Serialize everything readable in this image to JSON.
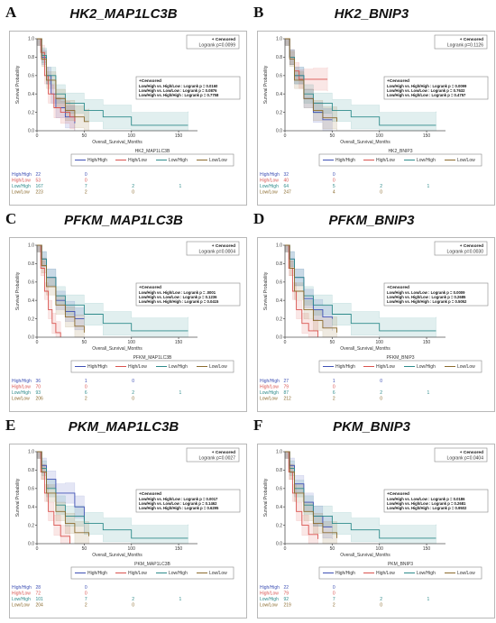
{
  "panels": [
    {
      "letter": "A",
      "title": "HK2_MAP1LC3B",
      "legend_title": "HK2_MAP1LC3B",
      "logrank_main": "Logrank p=0.0099",
      "censored_label": "+ Censored",
      "stats_title": "+Censored",
      "stats": [
        "Low/High vs. High/Low : Logrank p = 0.0160",
        "Low/High vs. Low/Low : Logrank p = 0.0876",
        "Low/High vs. High/High : Logrank p = 0.7758"
      ],
      "risk_table": [
        {
          "group": "High/High",
          "counts": [
            "22",
            "0",
            "",
            ""
          ]
        },
        {
          "group": "High/Low",
          "counts": [
            "53",
            "0",
            "",
            ""
          ]
        },
        {
          "group": "Low/High",
          "counts": [
            "167",
            "7",
            "2",
            "1"
          ]
        },
        {
          "group": "Low/Low",
          "counts": [
            "223",
            "2",
            "0",
            ""
          ]
        }
      ]
    },
    {
      "letter": "B",
      "title": "HK2_BNIP3",
      "legend_title": "HK2_BNIP3",
      "logrank_main": "Logrank p=0.1126",
      "censored_label": "+ Censored",
      "stats_title": "+Censored",
      "stats": [
        "Low/High vs. High/High : Logrank p = 0.0099",
        "Low/High vs. Low/Low : Logrank p = 0.7632",
        "Low/High vs. High/Low : Logrank p = 0.4757"
      ],
      "risk_table": [
        {
          "group": "High/High",
          "counts": [
            "32",
            "0",
            "",
            ""
          ]
        },
        {
          "group": "High/Low",
          "counts": [
            "40",
            "0",
            "",
            ""
          ]
        },
        {
          "group": "Low/High",
          "counts": [
            "64",
            "5",
            "2",
            "1"
          ]
        },
        {
          "group": "Low/Low",
          "counts": [
            "247",
            "4",
            "0",
            ""
          ]
        }
      ]
    },
    {
      "letter": "C",
      "title": "PFKM_MAP1LC3B",
      "legend_title": "PFKM_MAP1LC3B",
      "logrank_main": "Logrank p=0.0004",
      "censored_label": "+ Censored",
      "stats_title": "+Censored",
      "stats": [
        "Low/High vs. High/Low : Logrank p = .0001",
        "Low/High vs. Low/Low : Logrank p = 0.1236",
        "Low/High vs. High/High : Logrank p = 0.0415"
      ],
      "risk_table": [
        {
          "group": "High/High",
          "counts": [
            "36",
            "1",
            "0",
            ""
          ]
        },
        {
          "group": "High/Low",
          "counts": [
            "70",
            "0",
            "",
            ""
          ]
        },
        {
          "group": "Low/High",
          "counts": [
            "93",
            "6",
            "2",
            "1"
          ]
        },
        {
          "group": "Low/Low",
          "counts": [
            "206",
            "2",
            "0",
            ""
          ]
        }
      ]
    },
    {
      "letter": "D",
      "title": "PFKM_BNIP3",
      "legend_title": "PFKM_BNIP3",
      "logrank_main": "Logrank p=0.0030",
      "censored_label": "+ Censored",
      "stats_title": "+Censored",
      "stats": [
        "Low/High vs. Low/Low : Logrank p = 0.0009",
        "Low/High vs. High/Low : Logrank p = 0.2685",
        "Low/High vs. High/High : Logrank p = 0.5052"
      ],
      "risk_table": [
        {
          "group": "High/High",
          "counts": [
            "27",
            "1",
            "0",
            ""
          ]
        },
        {
          "group": "High/Low",
          "counts": [
            "79",
            "0",
            "",
            ""
          ]
        },
        {
          "group": "Low/High",
          "counts": [
            "87",
            "6",
            "2",
            "1"
          ]
        },
        {
          "group": "Low/Low",
          "counts": [
            "212",
            "2",
            "0",
            ""
          ]
        }
      ]
    },
    {
      "letter": "E",
      "title": "PKM_MAP1LC3B",
      "legend_title": "PKM_MAP1LC3B",
      "logrank_main": "Logrank p=0.0027",
      "censored_label": "+ Censored",
      "stats_title": "+Censored",
      "stats": [
        "Low/High vs. High/Low : Logrank p = 0.0017",
        "Low/High vs. Low/Low : Logrank p = 0.1462",
        "Low/High vs. High/High : Logrank p = 0.6295"
      ],
      "risk_table": [
        {
          "group": "High/High",
          "counts": [
            "28",
            "0",
            "",
            ""
          ]
        },
        {
          "group": "High/Low",
          "counts": [
            "72",
            "0",
            "",
            ""
          ]
        },
        {
          "group": "Low/High",
          "counts": [
            "101",
            "7",
            "2",
            "1"
          ]
        },
        {
          "group": "Low/Low",
          "counts": [
            "204",
            "2",
            "0",
            ""
          ]
        }
      ]
    },
    {
      "letter": "F",
      "title": "PKM_BNIP3",
      "legend_title": "PKM_BNIP3",
      "logrank_main": "Logrank p=0.0404",
      "censored_label": "+ Censored",
      "stats_title": "+Censored",
      "stats": [
        "Low/High vs. Low/Low : Logrank p = 0.0186",
        "Low/High vs. High/Low : Logrank p = 0.2681",
        "Low/High vs. High/High : Logrank p = 0.9502"
      ],
      "risk_table": [
        {
          "group": "High/High",
          "counts": [
            "22",
            "0",
            "",
            ""
          ]
        },
        {
          "group": "High/Low",
          "counts": [
            "79",
            "0",
            "",
            ""
          ]
        },
        {
          "group": "Low/High",
          "counts": [
            "92",
            "7",
            "2",
            "1"
          ]
        },
        {
          "group": "Low/Low",
          "counts": [
            "219",
            "2",
            "0",
            ""
          ]
        }
      ]
    }
  ],
  "chart_data": {
    "type": "line",
    "xlabel": "Overall_Survival_Months",
    "ylabel": "Survival Probability",
    "xlim": [
      0,
      170
    ],
    "ylim": [
      0,
      1.0
    ],
    "x_ticks": [
      0,
      50,
      100,
      150
    ],
    "y_ticks": [
      0.0,
      0.2,
      0.4,
      0.6,
      0.8,
      1.0
    ],
    "series_names": [
      "High/High",
      "High/Low",
      "Low/High",
      "Low/Low"
    ],
    "series_colors": {
      "High/High": "#3f51b5",
      "High/Low": "#d9534f",
      "Low/High": "#2e8b8b",
      "Low/Low": "#8b6b2e"
    },
    "panels": [
      {
        "series": [
          {
            "name": "High/High",
            "x": [
              0,
              5,
              10,
              15,
              20,
              30,
              40
            ],
            "y": [
              1.0,
              0.8,
              0.6,
              0.4,
              0.25,
              0.15,
              0.08
            ]
          },
          {
            "name": "High/Low",
            "x": [
              0,
              4,
              8,
              12,
              18,
              25,
              35,
              40
            ],
            "y": [
              1.0,
              0.85,
              0.6,
              0.4,
              0.25,
              0.2,
              0.15,
              0.1
            ]
          },
          {
            "name": "Low/High",
            "x": [
              0,
              5,
              10,
              20,
              30,
              50,
              70,
              100,
              160
            ],
            "y": [
              1.0,
              0.82,
              0.6,
              0.4,
              0.3,
              0.22,
              0.15,
              0.06,
              0.06
            ]
          },
          {
            "name": "Low/Low",
            "x": [
              0,
              5,
              10,
              20,
              30,
              40,
              50,
              55
            ],
            "y": [
              1.0,
              0.78,
              0.55,
              0.35,
              0.22,
              0.15,
              0.1,
              0.1
            ]
          }
        ]
      },
      {
        "series": [
          {
            "name": "High/High",
            "x": [
              0,
              5,
              10,
              20,
              30,
              40,
              50
            ],
            "y": [
              1.0,
              0.8,
              0.6,
              0.35,
              0.2,
              0.12,
              0.12
            ]
          },
          {
            "name": "High/Low",
            "x": [
              0,
              5,
              10,
              15,
              20,
              30,
              45
            ],
            "y": [
              1.0,
              0.8,
              0.65,
              0.56,
              0.56,
              0.56,
              0.56
            ]
          },
          {
            "name": "Low/High",
            "x": [
              0,
              5,
              10,
              20,
              30,
              50,
              70,
              100,
              160
            ],
            "y": [
              1.0,
              0.8,
              0.6,
              0.4,
              0.3,
              0.22,
              0.15,
              0.06,
              0.06
            ]
          },
          {
            "name": "Low/Low",
            "x": [
              0,
              5,
              10,
              20,
              30,
              40,
              55
            ],
            "y": [
              1.0,
              0.78,
              0.55,
              0.35,
              0.22,
              0.14,
              0.1
            ]
          }
        ]
      },
      {
        "series": [
          {
            "name": "High/High",
            "x": [
              0,
              5,
              10,
              20,
              30,
              40,
              50
            ],
            "y": [
              1.0,
              0.85,
              0.65,
              0.4,
              0.28,
              0.2,
              0.2
            ]
          },
          {
            "name": "High/Low",
            "x": [
              0,
              4,
              8,
              12,
              16,
              20,
              25
            ],
            "y": [
              1.0,
              0.75,
              0.5,
              0.3,
              0.15,
              0.05,
              0.0
            ]
          },
          {
            "name": "Low/High",
            "x": [
              0,
              5,
              10,
              20,
              30,
              50,
              70,
              100,
              160
            ],
            "y": [
              1.0,
              0.85,
              0.65,
              0.45,
              0.35,
              0.25,
              0.15,
              0.07,
              0.07
            ]
          },
          {
            "name": "Low/Low",
            "x": [
              0,
              5,
              10,
              20,
              30,
              40,
              50
            ],
            "y": [
              1.0,
              0.78,
              0.55,
              0.35,
              0.22,
              0.12,
              0.05
            ]
          }
        ]
      },
      {
        "series": [
          {
            "name": "High/High",
            "x": [
              0,
              5,
              10,
              20,
              30,
              40,
              50
            ],
            "y": [
              1.0,
              0.85,
              0.65,
              0.42,
              0.3,
              0.22,
              0.2
            ]
          },
          {
            "name": "High/Low",
            "x": [
              0,
              4,
              8,
              12,
              18,
              25,
              35
            ],
            "y": [
              1.0,
              0.75,
              0.5,
              0.3,
              0.15,
              0.07,
              0.0
            ]
          },
          {
            "name": "Low/High",
            "x": [
              0,
              5,
              10,
              20,
              30,
              50,
              70,
              100,
              160
            ],
            "y": [
              1.0,
              0.85,
              0.65,
              0.45,
              0.35,
              0.25,
              0.15,
              0.07,
              0.07
            ]
          },
          {
            "name": "Low/Low",
            "x": [
              0,
              5,
              10,
              20,
              30,
              40,
              55
            ],
            "y": [
              1.0,
              0.75,
              0.5,
              0.3,
              0.18,
              0.1,
              0.05
            ]
          }
        ]
      },
      {
        "series": [
          {
            "name": "High/High",
            "x": [
              0,
              5,
              10,
              20,
              30,
              40,
              50
            ],
            "y": [
              1.0,
              0.85,
              0.7,
              0.55,
              0.55,
              0.4,
              0.25
            ]
          },
          {
            "name": "High/Low",
            "x": [
              0,
              4,
              8,
              12,
              18,
              25,
              35
            ],
            "y": [
              1.0,
              0.78,
              0.55,
              0.35,
              0.2,
              0.08,
              0.0
            ]
          },
          {
            "name": "Low/High",
            "x": [
              0,
              5,
              10,
              20,
              30,
              50,
              70,
              100,
              160
            ],
            "y": [
              1.0,
              0.82,
              0.6,
              0.42,
              0.3,
              0.22,
              0.15,
              0.06,
              0.06
            ]
          },
          {
            "name": "Low/Low",
            "x": [
              0,
              5,
              10,
              20,
              30,
              40,
              55
            ],
            "y": [
              1.0,
              0.78,
              0.55,
              0.35,
              0.22,
              0.12,
              0.08
            ]
          }
        ]
      },
      {
        "series": [
          {
            "name": "High/High",
            "x": [
              0,
              5,
              10,
              20,
              30,
              40,
              50
            ],
            "y": [
              1.0,
              0.85,
              0.65,
              0.45,
              0.3,
              0.18,
              0.18
            ]
          },
          {
            "name": "High/Low",
            "x": [
              0,
              4,
              8,
              12,
              18,
              25,
              35
            ],
            "y": [
              1.0,
              0.78,
              0.55,
              0.35,
              0.2,
              0.1,
              0.05
            ]
          },
          {
            "name": "Low/High",
            "x": [
              0,
              5,
              10,
              20,
              30,
              50,
              70,
              100,
              160
            ],
            "y": [
              1.0,
              0.82,
              0.6,
              0.42,
              0.3,
              0.22,
              0.15,
              0.06,
              0.06
            ]
          },
          {
            "name": "Low/Low",
            "x": [
              0,
              5,
              10,
              20,
              30,
              40,
              55
            ],
            "y": [
              1.0,
              0.78,
              0.55,
              0.35,
              0.22,
              0.12,
              0.06
            ]
          }
        ]
      }
    ]
  }
}
